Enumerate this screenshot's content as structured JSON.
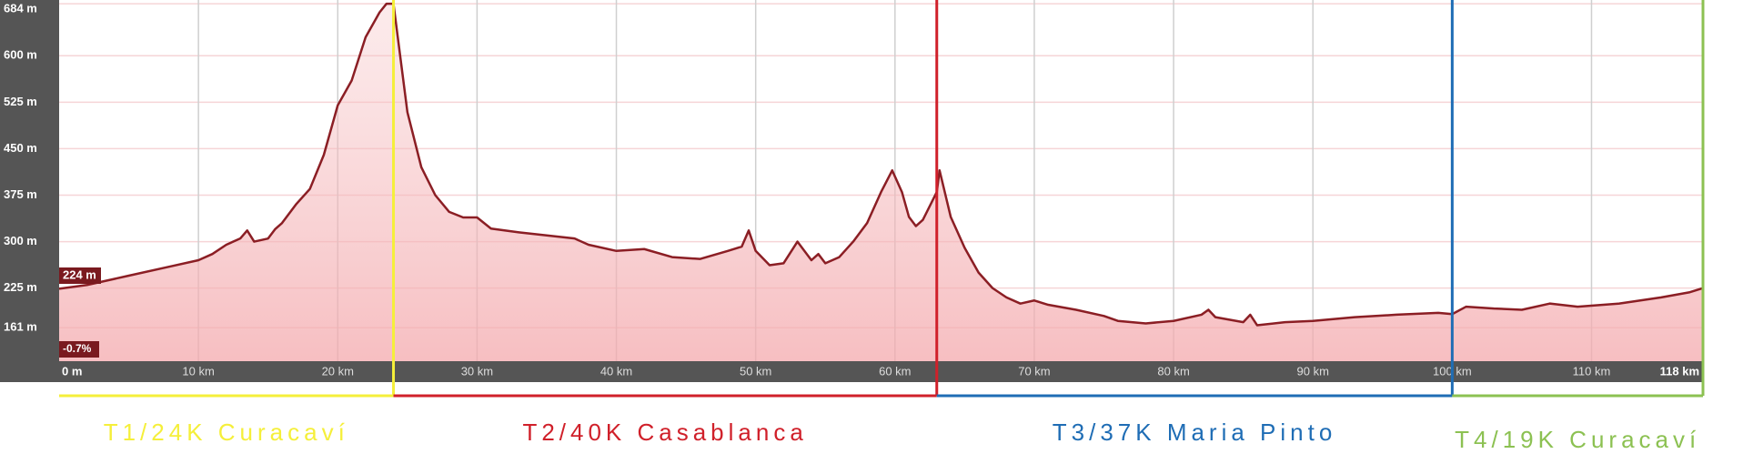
{
  "chart_data": {
    "type": "area",
    "x": [
      0,
      2,
      5,
      8,
      10,
      11,
      12,
      13,
      13.5,
      14,
      15,
      15.5,
      16,
      17,
      18,
      19,
      20,
      21,
      22,
      23,
      23.5,
      24,
      25,
      26,
      27,
      28,
      29,
      30,
      31,
      33,
      35,
      37,
      38,
      40,
      42,
      44,
      46,
      48,
      49,
      49.5,
      50,
      51,
      52,
      53,
      54,
      54.5,
      55,
      56,
      57,
      58,
      59,
      59.8,
      60.5,
      61,
      61.5,
      62,
      63,
      63.2,
      64,
      65,
      66,
      67,
      68,
      69,
      70,
      71,
      73,
      75,
      76,
      78,
      80,
      82,
      82.5,
      83,
      85,
      85.5,
      86,
      88,
      90,
      93,
      96,
      99,
      100,
      101,
      103,
      105,
      107,
      109,
      112,
      115,
      117,
      118
    ],
    "values": [
      224,
      230,
      245,
      260,
      270,
      280,
      295,
      305,
      318,
      300,
      305,
      320,
      330,
      360,
      385,
      440,
      520,
      560,
      630,
      670,
      684,
      684,
      509,
      420,
      375,
      348,
      339,
      339,
      321,
      315,
      310,
      305,
      295,
      285,
      288,
      275,
      272,
      285,
      292,
      318,
      285,
      262,
      265,
      300,
      270,
      280,
      265,
      275,
      300,
      330,
      380,
      415,
      380,
      340,
      325,
      335,
      380,
      415,
      340,
      290,
      250,
      225,
      210,
      200,
      205,
      198,
      190,
      180,
      172,
      168,
      172,
      182,
      190,
      178,
      170,
      182,
      165,
      170,
      172,
      178,
      182,
      185,
      183,
      195,
      192,
      190,
      200,
      195,
      200,
      210,
      218,
      225
    ],
    "color": "#8b1e24",
    "xlim": [
      0,
      118
    ],
    "ylim": [
      107,
      690
    ],
    "xticks": [
      {
        "value": 0,
        "label": "0 m"
      },
      {
        "value": 10,
        "label": "10 km"
      },
      {
        "value": 20,
        "label": "20 km"
      },
      {
        "value": 30,
        "label": "30 km"
      },
      {
        "value": 40,
        "label": "40 km"
      },
      {
        "value": 50,
        "label": "50 km"
      },
      {
        "value": 60,
        "label": "60 km"
      },
      {
        "value": 70,
        "label": "70 km"
      },
      {
        "value": 80,
        "label": "80 km"
      },
      {
        "value": 90,
        "label": "90 km"
      },
      {
        "value": 100,
        "label": "100 km"
      },
      {
        "value": 110,
        "label": "110 km"
      },
      {
        "value": 118,
        "label": "118 km"
      }
    ],
    "yticks": [
      {
        "value": 161,
        "label": "161 m"
      },
      {
        "value": 225,
        "label": "225 m"
      },
      {
        "value": 300,
        "label": "300 m"
      },
      {
        "value": 375,
        "label": "375 m"
      },
      {
        "value": 450,
        "label": "450 m"
      },
      {
        "value": 525,
        "label": "525 m"
      },
      {
        "value": 600,
        "label": "600 m"
      },
      {
        "value": 684,
        "label": "684 m"
      }
    ],
    "grid": true,
    "annotations": [
      "224 m",
      "-0.7%"
    ],
    "stages": [
      {
        "label": "T1/24K Curacaví",
        "color": "#f5ef3a",
        "start": 0,
        "end": 24
      },
      {
        "label": "T2/40K Casablanca",
        "color": "#d0202a",
        "start": 24,
        "end": 63
      },
      {
        "label": "T3/37K Maria Pinto",
        "color": "#1f6db5",
        "start": 63,
        "end": 100
      },
      {
        "label": "T4/19K Curacaví",
        "color": "#8cc152",
        "start": 100,
        "end": 118
      }
    ]
  }
}
